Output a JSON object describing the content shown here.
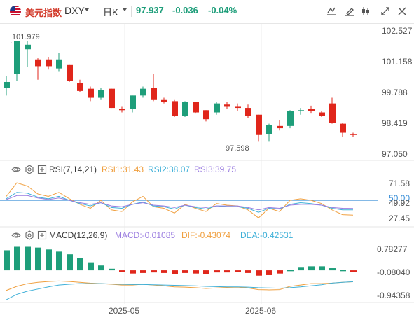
{
  "header": {
    "name": "美元指数",
    "symbol": "DXY",
    "period": "日K",
    "price": "97.937",
    "change": "-0.036",
    "change_pct": "-0.04%"
  },
  "colors": {
    "up": "#1e9e7a",
    "down": "#e0261b",
    "rsi1": "#f0a040",
    "rsi2": "#3fb0d8",
    "rsi3": "#9b7de0",
    "dif": "#f0a040",
    "dea": "#3fb0d8"
  },
  "chart_data": {
    "type": "candlestick",
    "x_ticks": [
      "2025-05",
      "2025-06"
    ],
    "price_axis": [
      "102.527",
      "101.158",
      "99.788",
      "98.419",
      "97.050"
    ],
    "ylim": [
      96.9,
      102.7
    ],
    "high_label": "101.979",
    "low_label": "97.598",
    "candles": [
      [
        100.0,
        100.5,
        99.65,
        100.25
      ],
      [
        100.6,
        102.0,
        100.3,
        102.05
      ],
      [
        101.7,
        102.05,
        100.9,
        101.9
      ],
      [
        101.25,
        101.3,
        100.35,
        100.95
      ],
      [
        101.25,
        101.35,
        100.8,
        100.95
      ],
      [
        100.85,
        101.55,
        100.7,
        101.25
      ],
      [
        101.0,
        101.0,
        100.25,
        100.3
      ],
      [
        100.2,
        100.35,
        99.8,
        99.85
      ],
      [
        99.95,
        100.05,
        99.4,
        99.55
      ],
      [
        99.55,
        100.0,
        99.45,
        99.9
      ],
      [
        99.95,
        99.95,
        99.1,
        99.1
      ],
      [
        99.05,
        99.15,
        98.9,
        99.0
      ],
      [
        99.05,
        99.65,
        98.9,
        99.65
      ],
      [
        99.65,
        100.05,
        99.55,
        99.95
      ],
      [
        100.0,
        100.6,
        99.4,
        99.45
      ],
      [
        99.45,
        99.55,
        99.3,
        99.35
      ],
      [
        99.4,
        99.45,
        98.7,
        98.75
      ],
      [
        98.75,
        99.4,
        98.7,
        99.35
      ],
      [
        99.35,
        99.35,
        98.85,
        98.9
      ],
      [
        99.0,
        99.0,
        98.5,
        98.6
      ],
      [
        98.9,
        99.35,
        98.8,
        99.3
      ],
      [
        99.25,
        99.35,
        99.05,
        99.15
      ],
      [
        99.15,
        99.3,
        98.95,
        99.1
      ],
      [
        99.1,
        99.25,
        98.65,
        98.75
      ],
      [
        98.8,
        98.8,
        97.6,
        97.9
      ],
      [
        97.95,
        98.4,
        97.6,
        98.35
      ],
      [
        98.3,
        98.55,
        98.1,
        98.2
      ],
      [
        98.3,
        99.0,
        98.2,
        98.95
      ],
      [
        98.95,
        99.1,
        98.8,
        99.0
      ],
      [
        99.05,
        99.2,
        98.85,
        98.95
      ],
      [
        98.9,
        98.95,
        98.7,
        98.75
      ],
      [
        99.3,
        99.55,
        98.4,
        98.45
      ],
      [
        98.4,
        98.45,
        97.8,
        98.0
      ],
      [
        97.95,
        98.0,
        97.8,
        97.9
      ]
    ],
    "rsi": {
      "label": "RSI(7,14,21)",
      "rsi1_label": "RSI1:31.43",
      "rsi2_label": "RSI2:38.07",
      "rsi3_label": "RSI3:39.75",
      "axis": [
        "71.58",
        "50.00",
        "49.92",
        "27.45"
      ],
      "ylim": [
        22,
        80
      ],
      "ref_line": 50,
      "rsi1": [
        55,
        72,
        68,
        58,
        55,
        60,
        52,
        45,
        40,
        50,
        38,
        36,
        48,
        55,
        42,
        40,
        34,
        45,
        40,
        36,
        46,
        44,
        43,
        38,
        28,
        40,
        36,
        50,
        52,
        50,
        46,
        38,
        32,
        31.43
      ],
      "rsi2": [
        52,
        60,
        59,
        54,
        52,
        55,
        50,
        46,
        43,
        47,
        41,
        40,
        45,
        48,
        43,
        42,
        39,
        44,
        41,
        39,
        43,
        42,
        42,
        40,
        35,
        40,
        39,
        45,
        47,
        46,
        44,
        40,
        38,
        38.07
      ],
      "rsi3": [
        51,
        56,
        56,
        53,
        51,
        53,
        50,
        47,
        45,
        47,
        43,
        42,
        45,
        47,
        44,
        43,
        41,
        44,
        42,
        41,
        43,
        43,
        43,
        41,
        38,
        41,
        40,
        44,
        45,
        45,
        44,
        41,
        40,
        39.75
      ]
    },
    "macd": {
      "label": "MACD(12,26,9)",
      "macd_label": "MACD:-0.01085",
      "dif_label": "DIF:-0.43074",
      "dea_label": "DEA:-0.42531",
      "axis": [
        "0.78277",
        "-0.08040",
        "-0.94358"
      ],
      "ylim": [
        -1.15,
        1.05
      ],
      "hist": [
        0.75,
        0.88,
        0.88,
        0.85,
        0.78,
        0.7,
        0.6,
        0.45,
        0.3,
        0.18,
        0.06,
        -0.05,
        -0.12,
        -0.1,
        -0.08,
        -0.1,
        -0.15,
        -0.1,
        -0.12,
        -0.15,
        -0.08,
        -0.08,
        -0.06,
        -0.1,
        -0.2,
        -0.18,
        -0.12,
        0.02,
        0.1,
        0.15,
        0.15,
        0.08,
        0.02,
        -0.01085
      ],
      "dif": [
        -0.75,
        -0.6,
        -0.5,
        -0.45,
        -0.42,
        -0.4,
        -0.42,
        -0.45,
        -0.48,
        -0.5,
        -0.52,
        -0.55,
        -0.55,
        -0.52,
        -0.55,
        -0.58,
        -0.62,
        -0.63,
        -0.65,
        -0.68,
        -0.66,
        -0.64,
        -0.63,
        -0.66,
        -0.72,
        -0.73,
        -0.72,
        -0.6,
        -0.55,
        -0.5,
        -0.5,
        -0.48,
        -0.45,
        -0.43074
      ],
      "dea": [
        -1.1,
        -0.9,
        -0.78,
        -0.7,
        -0.62,
        -0.55,
        -0.52,
        -0.5,
        -0.5,
        -0.5,
        -0.51,
        -0.52,
        -0.53,
        -0.53,
        -0.54,
        -0.55,
        -0.56,
        -0.57,
        -0.58,
        -0.6,
        -0.61,
        -0.62,
        -0.62,
        -0.63,
        -0.65,
        -0.66,
        -0.67,
        -0.65,
        -0.62,
        -0.58,
        -0.54,
        -0.48,
        -0.45,
        -0.42531
      ]
    }
  }
}
